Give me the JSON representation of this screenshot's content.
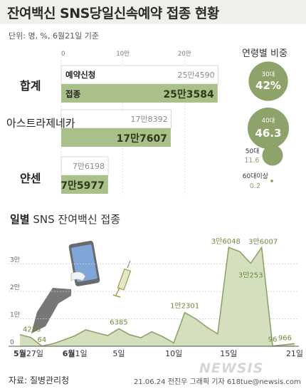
{
  "header": {
    "title": "잔여백신 SNS당일신속예약 접종 현황",
    "unit": "단위: 명, %, 6월21일 기준"
  },
  "bar_section": {
    "ticks": [
      "0",
      "10만",
      "20만"
    ],
    "legend_reserve": "예약신청",
    "legend_vacc": "접종"
  },
  "age_section": {
    "title": "연령별 비중",
    "groups": [
      {
        "label": "30대",
        "value": "42%"
      },
      {
        "label": "40대",
        "value": "46.3"
      },
      {
        "label": "50대",
        "value": "11.6"
      },
      {
        "label": "60대이상",
        "value": "0.2"
      }
    ]
  },
  "daily_section": {
    "title_bold": "일별",
    "title_rest": "SNS 잔여백신 접종",
    "y_ticks": [
      "3만",
      "2만",
      "1만",
      "0"
    ],
    "x_ticks": [
      {
        "bold": "5월",
        "rest": "27일"
      },
      {
        "bold": "6월",
        "rest": "1일"
      },
      {
        "bold": "",
        "rest": "5일"
      },
      {
        "bold": "",
        "rest": "10일"
      },
      {
        "bold": "",
        "rest": "15일"
      },
      {
        "bold": "",
        "rest": "21일"
      }
    ],
    "point_labels": [
      "4253",
      "64",
      "6385",
      "1만2301",
      "3만6048",
      "3만253",
      "3만6007",
      "96",
      "966"
    ]
  },
  "footer": {
    "source": "자료: 질병관리청",
    "credit": "21.06.24 전진우 그래픽 기자 618tue@newsis.com",
    "watermark": "NEWSIS"
  },
  "chart_data": [
    {
      "type": "bar",
      "categories": [
        "합계",
        "아스트라제네카",
        "얀센"
      ],
      "series": [
        {
          "name": "예약신청",
          "values": [
            254590,
            178392,
            76198
          ],
          "labels": [
            "25만4590",
            "17만8392",
            "7만6198"
          ]
        },
        {
          "name": "접종",
          "values": [
            253584,
            177607,
            75977
          ],
          "labels": [
            "25만3584",
            "17만7607",
            "7만5977"
          ]
        }
      ],
      "xlim": [
        0,
        300000
      ]
    },
    {
      "type": "pie",
      "title": "연령별 비중",
      "categories": [
        "30대",
        "40대",
        "50대",
        "60대이상"
      ],
      "values": [
        42,
        46.3,
        11.6,
        0.2
      ]
    },
    {
      "type": "area",
      "title": "일별 SNS 잔여백신 접종",
      "x": [
        "5/27",
        "5/28",
        "5/29",
        "5/30",
        "5/31",
        "6/1",
        "6/2",
        "6/3",
        "6/4",
        "6/5",
        "6/6",
        "6/7",
        "6/8",
        "6/9",
        "6/10",
        "6/11",
        "6/12",
        "6/13",
        "6/14",
        "6/15",
        "6/16",
        "6/17",
        "6/18",
        "6/19",
        "6/20",
        "6/21"
      ],
      "values": [
        4253,
        3200,
        64,
        900,
        2300,
        3800,
        6000,
        4900,
        3900,
        6385,
        4200,
        3100,
        5300,
        3500,
        1200,
        12301,
        10000,
        7000,
        4500,
        36048,
        34500,
        30253,
        36007,
        96,
        500,
        966
      ],
      "ylim": [
        0,
        40000
      ],
      "y_ticks": [
        "0",
        "1만",
        "2만",
        "3만"
      ]
    }
  ]
}
